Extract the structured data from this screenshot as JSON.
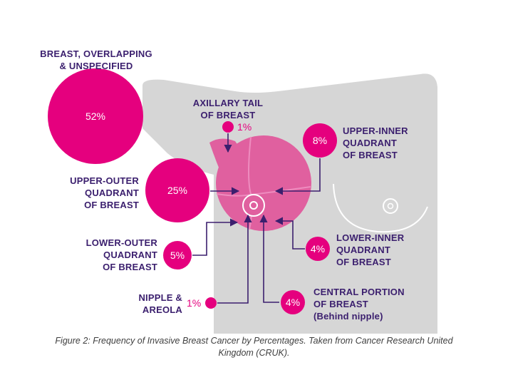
{
  "figure": {
    "colors": {
      "body": "#d6d6d6",
      "breast": "#e0609f",
      "breast_light": "#ee8cbf",
      "accent": "#e5007e",
      "label": "#3b1f6e",
      "arrow": "#3b1f6e"
    },
    "regions": [
      {
        "key": "overlapping",
        "label_lines": [
          "BREAST, OVERLAPPING",
          "& UNSPECIFIED"
        ],
        "percent": "52%"
      },
      {
        "key": "axillary",
        "label_lines": [
          "AXILLARY TAIL",
          "OF BREAST"
        ],
        "percent": "1%"
      },
      {
        "key": "upper_inner",
        "label_lines": [
          "UPPER-INNER",
          "QUADRANT",
          "OF BREAST"
        ],
        "percent": "8%"
      },
      {
        "key": "upper_outer",
        "label_lines": [
          "UPPER-OUTER",
          "QUADRANT",
          "OF BREAST"
        ],
        "percent": "25%"
      },
      {
        "key": "lower_outer",
        "label_lines": [
          "LOWER-OUTER",
          "QUADRANT",
          "OF BREAST"
        ],
        "percent": "5%"
      },
      {
        "key": "lower_inner",
        "label_lines": [
          "LOWER-INNER",
          "QUADRANT",
          "OF BREAST"
        ],
        "percent": "4%"
      },
      {
        "key": "nipple",
        "label_lines": [
          "NIPPLE &",
          "AREOLA"
        ],
        "percent": "1%"
      },
      {
        "key": "central",
        "label_lines": [
          "CENTRAL PORTION",
          "OF BREAST",
          "(Behind nipple)"
        ],
        "percent": "4%"
      }
    ]
  },
  "caption": {
    "line1": "Figure 2: Frequency of Invasive Breast Cancer by Percentages. Taken from Cancer Research United",
    "line2": "Kingdom (CRUK)."
  }
}
